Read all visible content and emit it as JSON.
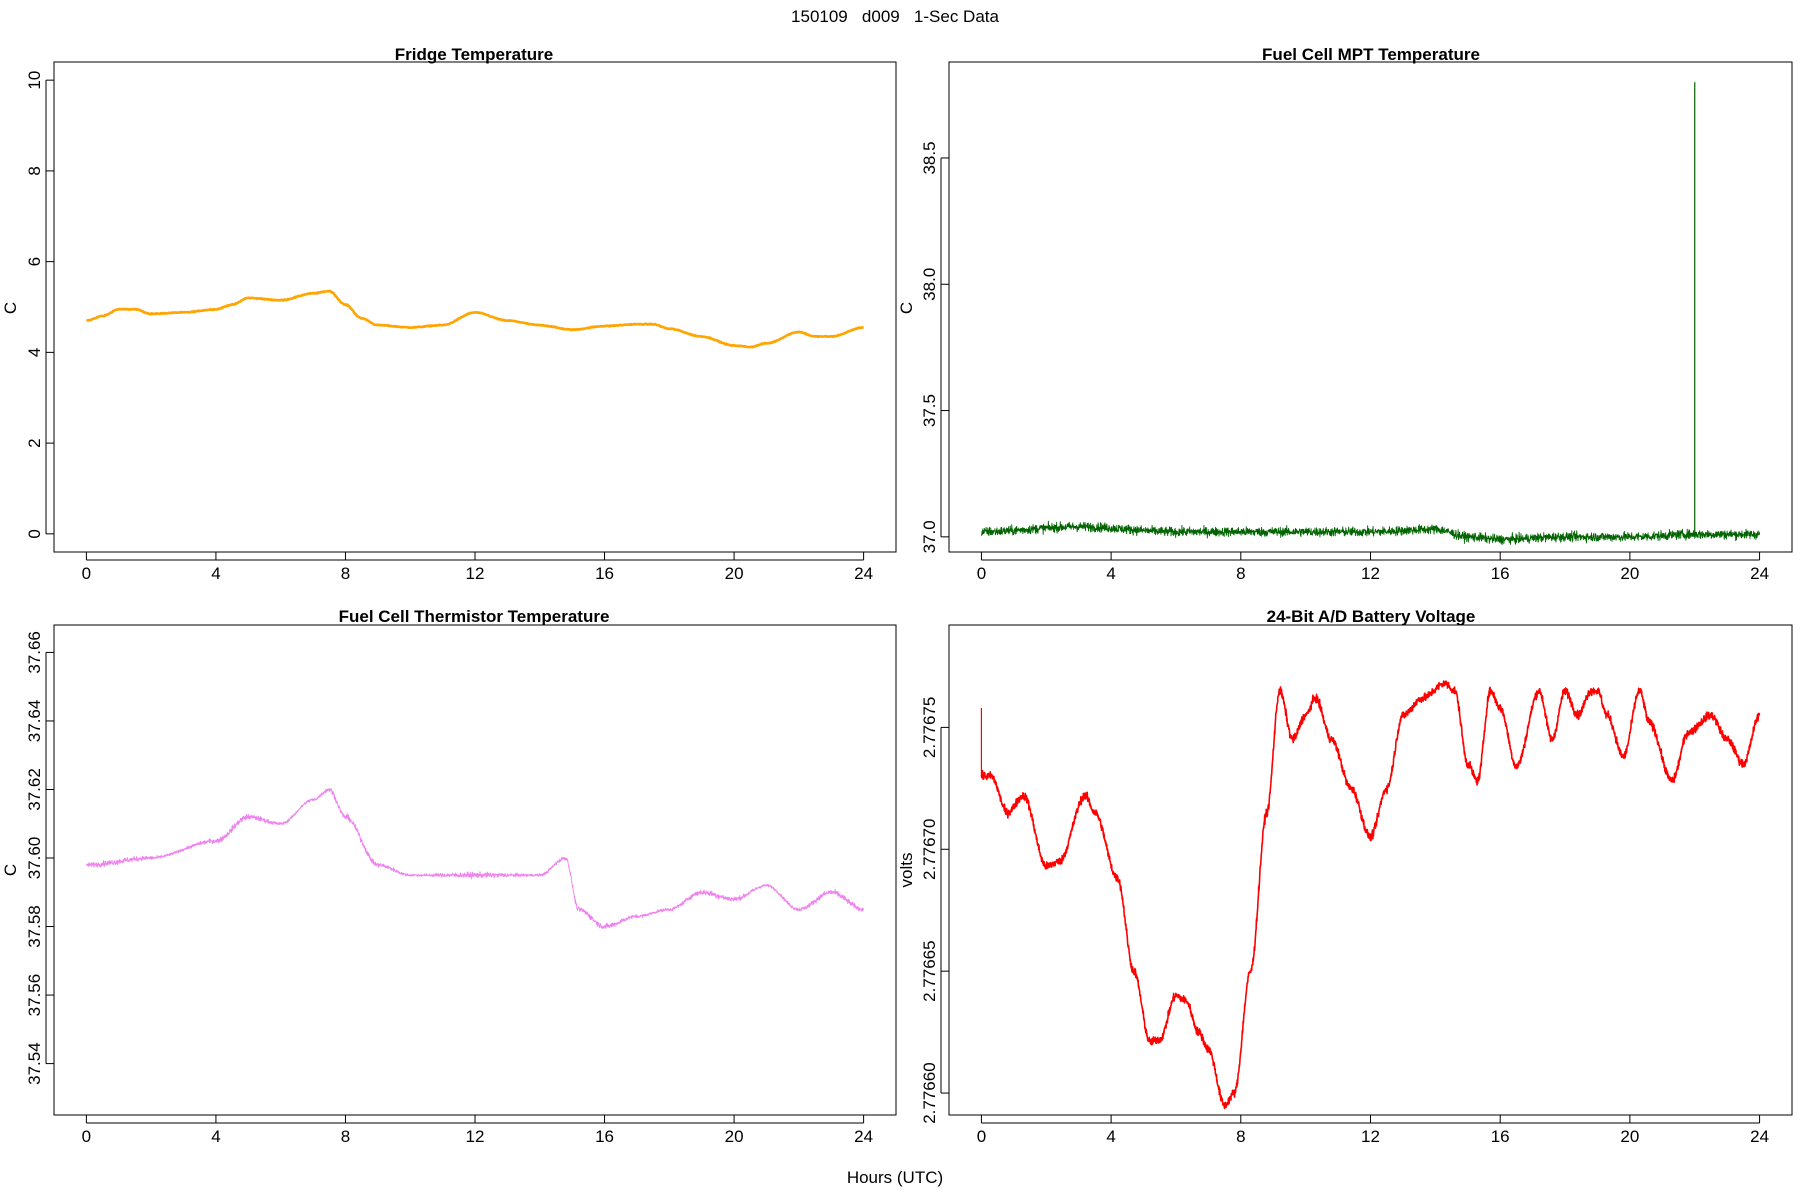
{
  "figure": {
    "suptitle": "150109   d009   1-Sec Data",
    "xlabel": "Hours (UTC)"
  },
  "chart_data": [
    {
      "type": "line",
      "title": "Fridge Temperature",
      "ylabel": "C",
      "xlim": [
        -1,
        25
      ],
      "ylim": [
        -0.4,
        10.4
      ],
      "xticks": [
        0,
        4,
        8,
        12,
        16,
        20,
        24
      ],
      "yticks": [
        0,
        2,
        4,
        6,
        8,
        10
      ],
      "ytick_labels": [
        "0",
        "2",
        "4",
        "6",
        "8",
        "10"
      ],
      "color": "#FFA500",
      "noise": 0.02,
      "x": [
        0,
        0.5,
        1,
        1.5,
        2,
        3,
        4,
        4.5,
        5,
        6,
        7,
        7.5,
        8,
        8.5,
        9,
        10,
        11,
        12,
        13,
        14,
        15,
        16,
        17,
        17.5,
        18,
        19,
        20,
        20.5,
        21,
        22,
        22.5,
        23,
        24
      ],
      "y": [
        4.7,
        4.8,
        4.95,
        4.95,
        4.85,
        4.88,
        4.95,
        5.05,
        5.2,
        5.15,
        5.3,
        5.35,
        5.05,
        4.75,
        4.6,
        4.55,
        4.6,
        4.88,
        4.7,
        4.6,
        4.5,
        4.58,
        4.62,
        4.62,
        4.52,
        4.35,
        4.15,
        4.12,
        4.2,
        4.45,
        4.35,
        4.35,
        4.55
      ]
    },
    {
      "type": "line",
      "title": "Fuel Cell MPT Temperature",
      "ylabel": "C",
      "xlim": [
        -1,
        25
      ],
      "ylim": [
        36.94,
        38.88
      ],
      "xticks": [
        0,
        4,
        8,
        12,
        16,
        20,
        24
      ],
      "yticks": [
        37.0,
        37.5,
        38.0,
        38.5
      ],
      "ytick_labels": [
        "37.0",
        "37.5",
        "38.0",
        "38.5"
      ],
      "color": "#006400",
      "noise": 0.07,
      "spike": {
        "x": 22.0,
        "y": 38.8
      },
      "x": [
        0,
        3,
        6,
        9,
        12,
        14,
        15,
        16,
        18,
        20,
        22,
        24
      ],
      "y": [
        37.02,
        37.04,
        37.02,
        37.02,
        37.02,
        37.03,
        37.0,
        36.99,
        37.0,
        37.0,
        37.01,
        37.01
      ]
    },
    {
      "type": "line",
      "title": "Fuel Cell Thermistor Temperature",
      "ylabel": "C",
      "xlim": [
        -1,
        25
      ],
      "ylim": [
        37.525,
        37.668
      ],
      "xticks": [
        0,
        4,
        8,
        12,
        16,
        20,
        24
      ],
      "yticks": [
        37.54,
        37.56,
        37.58,
        37.6,
        37.62,
        37.64,
        37.66
      ],
      "ytick_labels": [
        "37.54",
        "37.56",
        "37.58",
        "37.60",
        "37.62",
        "37.64",
        "37.66"
      ],
      "color": "#EE82EE",
      "noise": 0.05,
      "x": [
        0,
        2,
        4,
        5,
        6,
        7,
        7.5,
        8,
        9,
        10,
        12,
        14,
        14.8,
        15.2,
        16,
        17,
        18,
        19,
        20,
        21,
        22,
        23,
        24
      ],
      "y": [
        37.598,
        37.6,
        37.605,
        37.612,
        37.61,
        37.617,
        37.62,
        37.612,
        37.598,
        37.595,
        37.595,
        37.595,
        37.6,
        37.585,
        37.58,
        37.583,
        37.585,
        37.59,
        37.588,
        37.592,
        37.585,
        37.59,
        37.585
      ]
    },
    {
      "type": "line",
      "title": "24-Bit A/D Battery Voltage",
      "ylabel": "volts",
      "xlim": [
        -1,
        25
      ],
      "ylim": [
        2.776591,
        2.776792
      ],
      "xticks": [
        0,
        4,
        8,
        12,
        16,
        20,
        24
      ],
      "yticks": [
        2.7766,
        2.77665,
        2.7767,
        2.77675
      ],
      "ytick_labels": [
        "2.77660",
        "2.77665",
        "2.77670",
        "2.77675"
      ],
      "color": "#FF0000",
      "noise": 1.6e-06,
      "x": [
        0,
        0.3,
        0.8,
        1.3,
        2.0,
        2.4,
        3.2,
        3.5,
        4.2,
        4.7,
        5.2,
        5.5,
        6.0,
        6.3,
        6.7,
        7.0,
        7.5,
        7.8,
        8.3,
        8.8,
        9.2,
        9.6,
        10.0,
        10.3,
        10.8,
        11.4,
        12.0,
        12.5,
        13.0,
        13.6,
        14.3,
        14.6,
        15.0,
        15.3,
        15.7,
        16.0,
        16.5,
        17.2,
        17.6,
        18.0,
        18.4,
        18.8,
        19.0,
        19.3,
        19.8,
        20.3,
        20.6,
        21.3,
        21.8,
        22.5,
        23.0,
        23.5,
        24.0
      ],
      "y": [
        2.77673,
        2.77673,
        2.776715,
        2.776722,
        2.776693,
        2.776695,
        2.776722,
        2.776715,
        2.776688,
        2.77665,
        2.776621,
        2.776622,
        2.77664,
        2.776638,
        2.776625,
        2.776618,
        2.776595,
        2.7766,
        2.77665,
        2.776715,
        2.776765,
        2.776745,
        2.776755,
        2.776762,
        2.776745,
        2.776725,
        2.776705,
        2.776725,
        2.776755,
        2.776762,
        2.776768,
        2.776765,
        2.776735,
        2.776728,
        2.776765,
        2.776758,
        2.776734,
        2.776765,
        2.776745,
        2.776765,
        2.776755,
        2.776765,
        2.776765,
        2.776755,
        2.776738,
        2.776765,
        2.776752,
        2.776728,
        2.776748,
        2.776755,
        2.776745,
        2.776735,
        2.776755
      ]
    }
  ]
}
